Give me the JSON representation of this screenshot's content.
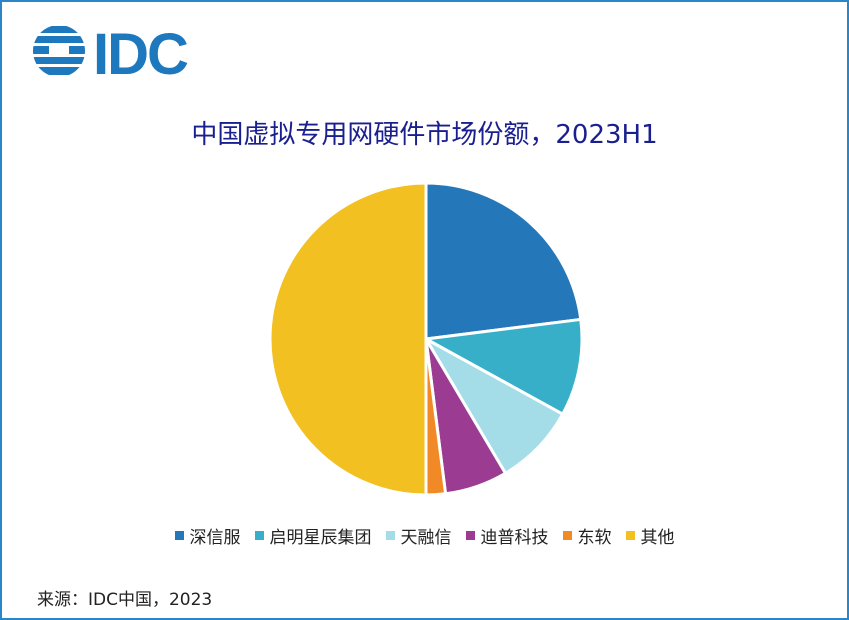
{
  "logo": {
    "text": "IDC",
    "color": "#1e78be"
  },
  "chart_data": {
    "type": "pie",
    "title": "中国虚拟专用网硬件市场份额，2023H1",
    "start_angle_deg": 0,
    "direction": "clockwise",
    "slices": [
      {
        "label": "深信服",
        "value": 23.0,
        "color": "#2478ba"
      },
      {
        "label": "启明星辰集团",
        "value": 10.0,
        "color": "#38afc9"
      },
      {
        "label": "天融信",
        "value": 8.5,
        "color": "#a4dde7"
      },
      {
        "label": "迪普科技",
        "value": 6.5,
        "color": "#9b3b92"
      },
      {
        "label": "东软",
        "value": 2.0,
        "color": "#f18a26"
      },
      {
        "label": "其他",
        "value": 50.0,
        "color": "#f2c020"
      }
    ],
    "legend_position": "bottom"
  },
  "source": "来源：IDC中国，2023"
}
